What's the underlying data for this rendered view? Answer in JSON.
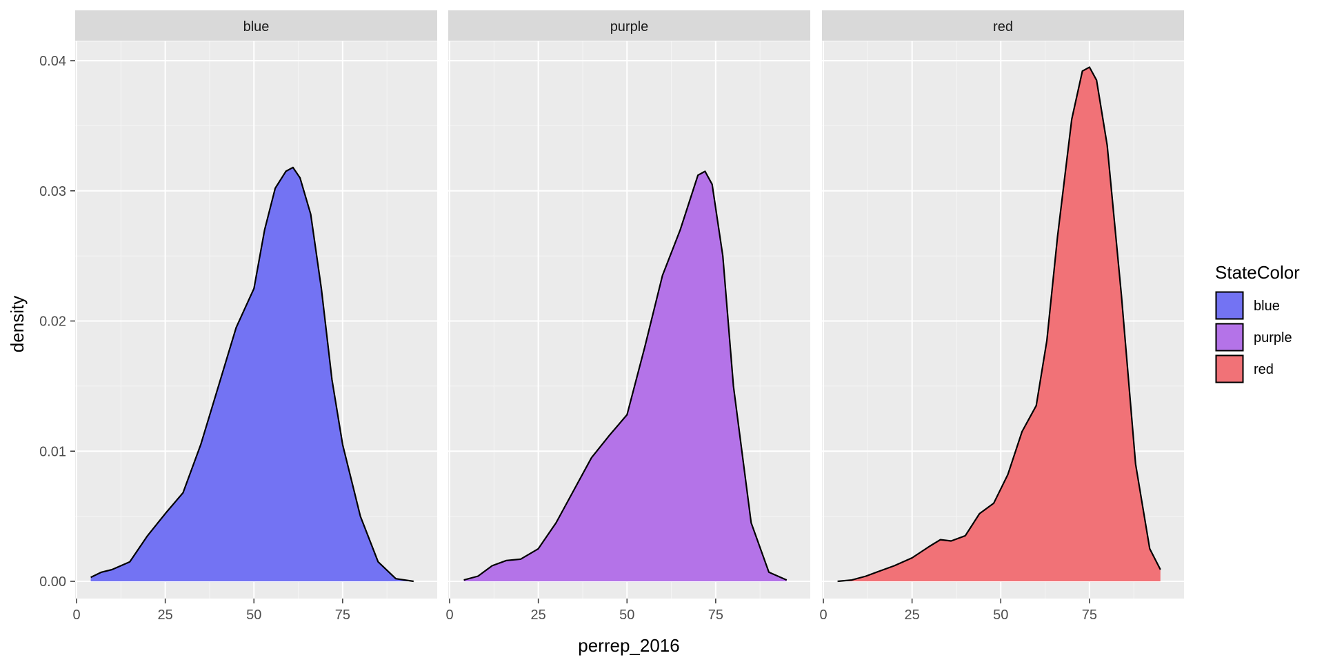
{
  "chart_data": {
    "type": "area",
    "xlabel": "perrep_2016",
    "ylabel": "density",
    "xlim": [
      0,
      100
    ],
    "ylim": [
      0,
      0.04
    ],
    "x_ticks": [
      0,
      25,
      50,
      75
    ],
    "x_tick_labels": [
      "0",
      "25",
      "50",
      "75"
    ],
    "y_ticks": [
      0,
      0.01,
      0.02,
      0.03,
      0.04
    ],
    "y_tick_labels": [
      "0.00",
      "0.01",
      "0.02",
      "0.03",
      "0.04"
    ],
    "grid": true,
    "legend": {
      "title": "StateColor",
      "position": "right",
      "entries": [
        {
          "label": "blue",
          "color": "#7373f3"
        },
        {
          "label": "purple",
          "color": "#b473e8"
        },
        {
          "label": "red",
          "color": "#f17277"
        }
      ]
    },
    "panels": [
      {
        "name": "blue",
        "color": "#7373f3",
        "x": [
          4,
          7,
          10,
          15,
          20,
          25,
          30,
          35,
          40,
          45,
          50,
          53,
          56,
          59,
          61,
          63,
          66,
          69,
          72,
          75,
          80,
          85,
          90,
          95
        ],
        "y": [
          0.0003,
          0.0007,
          0.0009,
          0.0015,
          0.0035,
          0.0052,
          0.0068,
          0.0105,
          0.015,
          0.0195,
          0.0225,
          0.027,
          0.0302,
          0.0315,
          0.0318,
          0.031,
          0.0282,
          0.0225,
          0.0155,
          0.0105,
          0.005,
          0.0015,
          0.0002,
          0.0
        ]
      },
      {
        "name": "purple",
        "color": "#b473e8",
        "x": [
          4,
          8,
          12,
          16,
          20,
          25,
          30,
          35,
          40,
          45,
          50,
          55,
          60,
          65,
          70,
          72,
          74,
          77,
          80,
          85,
          90,
          95
        ],
        "y": [
          0.0001,
          0.0004,
          0.0012,
          0.0016,
          0.0017,
          0.0025,
          0.0045,
          0.007,
          0.0095,
          0.0112,
          0.0128,
          0.018,
          0.0235,
          0.027,
          0.0312,
          0.0315,
          0.0305,
          0.025,
          0.015,
          0.0045,
          0.0007,
          0.0001
        ]
      },
      {
        "name": "red",
        "color": "#f17277",
        "x": [
          4,
          8,
          12,
          16,
          20,
          25,
          30,
          33,
          36,
          40,
          44,
          48,
          52,
          56,
          60,
          63,
          66,
          70,
          73,
          75,
          77,
          80,
          84,
          88,
          92,
          95
        ],
        "y": [
          0.0,
          0.0001,
          0.0004,
          0.0008,
          0.0012,
          0.0018,
          0.0027,
          0.0032,
          0.0031,
          0.0035,
          0.0052,
          0.006,
          0.0082,
          0.0115,
          0.0135,
          0.0185,
          0.0265,
          0.0355,
          0.0392,
          0.0395,
          0.0385,
          0.0335,
          0.022,
          0.009,
          0.0025,
          0.0009
        ]
      }
    ]
  }
}
